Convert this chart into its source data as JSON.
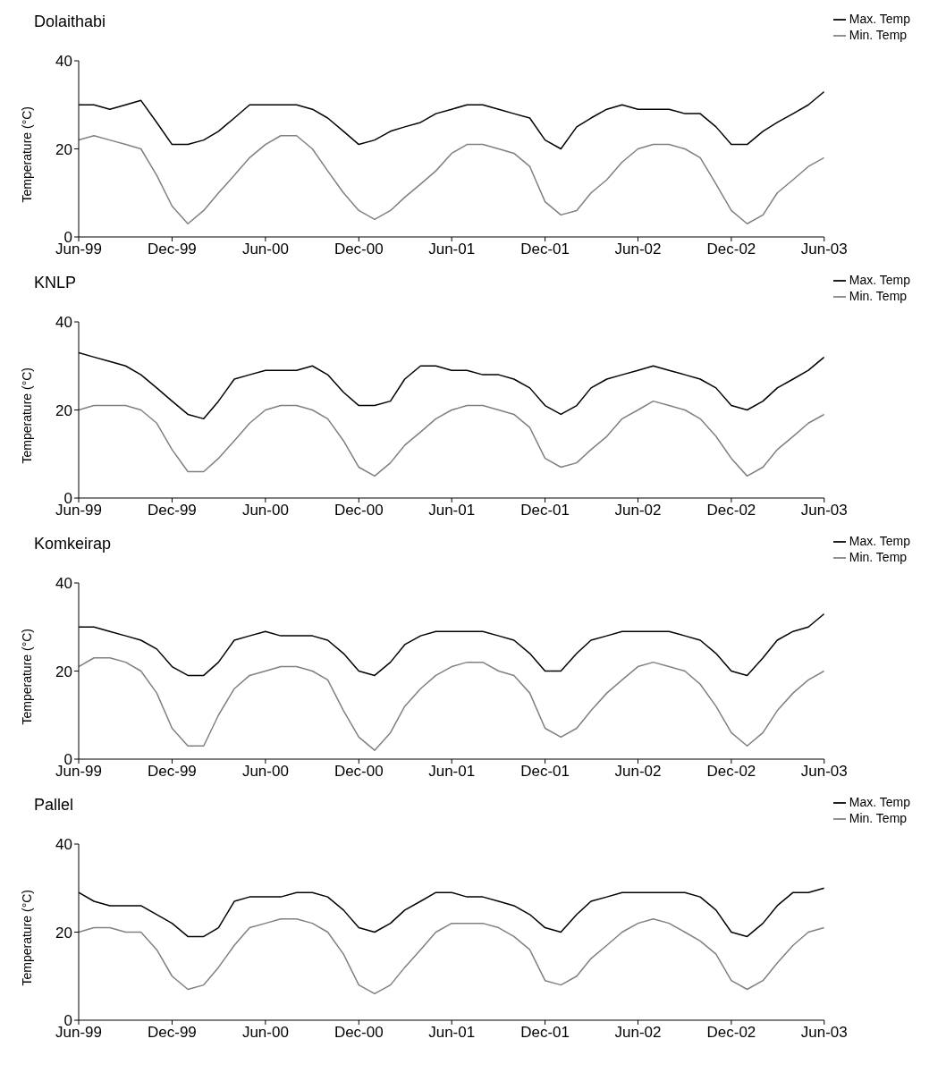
{
  "chart_data": [
    {
      "type": "line",
      "title": "Dolaithabi",
      "ylabel": "Temperature (°C)",
      "legend": "top right",
      "grid": false,
      "marker": "none",
      "line_style": "solid",
      "x": [
        "1999-06",
        "1999-07",
        "1999-08",
        "1999-09",
        "1999-10",
        "1999-11",
        "1999-12",
        "2000-01",
        "2000-02",
        "2000-03",
        "2000-04",
        "2000-05",
        "2000-06",
        "2000-07",
        "2000-08",
        "2000-09",
        "2000-10",
        "2000-11",
        "2000-12",
        "2001-01",
        "2001-02",
        "2001-03",
        "2001-04",
        "2001-05",
        "2001-06",
        "2001-07",
        "2001-08",
        "2001-09",
        "2001-10",
        "2001-11",
        "2001-12",
        "2002-01",
        "2002-02",
        "2002-03",
        "2002-04",
        "2002-05",
        "2002-06",
        "2002-07",
        "2002-08",
        "2002-09",
        "2002-10",
        "2002-11",
        "2002-12",
        "2003-01",
        "2003-02",
        "2003-03",
        "2003-04",
        "2003-05",
        "2003-06"
      ],
      "xlim": [
        "1999-06",
        "2003-06"
      ],
      "xticks": [
        {
          "value": "1999-06",
          "label": "Jun-99"
        },
        {
          "value": "1999-12",
          "label": "Dec-99"
        },
        {
          "value": "2000-06",
          "label": "Jun-00"
        },
        {
          "value": "2000-12",
          "label": "Dec-00"
        },
        {
          "value": "2001-06",
          "label": "Jun-01"
        },
        {
          "value": "2001-12",
          "label": "Dec-01"
        },
        {
          "value": "2002-06",
          "label": "Jun-02"
        },
        {
          "value": "2002-12",
          "label": "Dec-02"
        },
        {
          "value": "2003-06",
          "label": "Jun-03"
        }
      ],
      "ylim": [
        0,
        40
      ],
      "yticks": [
        0,
        20,
        40
      ],
      "series": [
        {
          "name": "Max. Temp",
          "color": "#000000",
          "values": [
            30,
            30,
            29,
            30,
            31,
            26,
            21,
            21,
            22,
            24,
            27,
            30,
            30,
            30,
            30,
            29,
            27,
            24,
            21,
            22,
            24,
            25,
            26,
            28,
            29,
            30,
            30,
            29,
            28,
            27,
            22,
            20,
            25,
            27,
            29,
            30,
            29,
            29,
            29,
            28,
            28,
            25,
            21,
            21,
            24,
            26,
            28,
            30,
            33
          ]
        },
        {
          "name": "Min. Temp",
          "color": "#808080",
          "values": [
            22,
            23,
            22,
            21,
            20,
            14,
            7,
            3,
            6,
            10,
            14,
            18,
            21,
            23,
            23,
            20,
            15,
            10,
            6,
            4,
            6,
            9,
            12,
            15,
            19,
            21,
            21,
            20,
            19,
            16,
            8,
            5,
            6,
            10,
            13,
            17,
            20,
            21,
            21,
            20,
            18,
            12,
            6,
            3,
            5,
            10,
            13,
            16,
            18
          ]
        }
      ]
    },
    {
      "type": "line",
      "title": "KNLP",
      "ylabel": "Temperature (°C)",
      "legend": "top right",
      "grid": false,
      "marker": "none",
      "line_style": "solid",
      "x": [
        "1999-06",
        "1999-07",
        "1999-08",
        "1999-09",
        "1999-10",
        "1999-11",
        "1999-12",
        "2000-01",
        "2000-02",
        "2000-03",
        "2000-04",
        "2000-05",
        "2000-06",
        "2000-07",
        "2000-08",
        "2000-09",
        "2000-10",
        "2000-11",
        "2000-12",
        "2001-01",
        "2001-02",
        "2001-03",
        "2001-04",
        "2001-05",
        "2001-06",
        "2001-07",
        "2001-08",
        "2001-09",
        "2001-10",
        "2001-11",
        "2001-12",
        "2002-01",
        "2002-02",
        "2002-03",
        "2002-04",
        "2002-05",
        "2002-06",
        "2002-07",
        "2002-08",
        "2002-09",
        "2002-10",
        "2002-11",
        "2002-12",
        "2003-01",
        "2003-02",
        "2003-03",
        "2003-04",
        "2003-05",
        "2003-06"
      ],
      "xlim": [
        "1999-06",
        "2003-06"
      ],
      "xticks": [
        {
          "value": "1999-06",
          "label": "Jun-99"
        },
        {
          "value": "1999-12",
          "label": "Dec-99"
        },
        {
          "value": "2000-06",
          "label": "Jun-00"
        },
        {
          "value": "2000-12",
          "label": "Dec-00"
        },
        {
          "value": "2001-06",
          "label": "Jun-01"
        },
        {
          "value": "2001-12",
          "label": "Dec-01"
        },
        {
          "value": "2002-06",
          "label": "Jun-02"
        },
        {
          "value": "2002-12",
          "label": "Dec-02"
        },
        {
          "value": "2003-06",
          "label": "Jun-03"
        }
      ],
      "ylim": [
        0,
        40
      ],
      "yticks": [
        0,
        20,
        40
      ],
      "series": [
        {
          "name": "Max. Temp",
          "color": "#000000",
          "values": [
            33,
            32,
            31,
            30,
            28,
            25,
            22,
            19,
            18,
            22,
            27,
            28,
            29,
            29,
            29,
            30,
            28,
            24,
            21,
            21,
            22,
            27,
            30,
            30,
            29,
            29,
            28,
            28,
            27,
            25,
            21,
            19,
            21,
            25,
            27,
            28,
            29,
            30,
            29,
            28,
            27,
            25,
            21,
            20,
            22,
            25,
            27,
            29,
            32
          ]
        },
        {
          "name": "Min. Temp",
          "color": "#808080",
          "values": [
            20,
            21,
            21,
            21,
            20,
            17,
            11,
            6,
            6,
            9,
            13,
            17,
            20,
            21,
            21,
            20,
            18,
            13,
            7,
            5,
            8,
            12,
            15,
            18,
            20,
            21,
            21,
            20,
            19,
            16,
            9,
            7,
            8,
            11,
            14,
            18,
            20,
            22,
            21,
            20,
            18,
            14,
            9,
            5,
            7,
            11,
            14,
            17,
            19
          ]
        }
      ]
    },
    {
      "type": "line",
      "title": "Komkeirap",
      "ylabel": "Temperature (°C)",
      "legend": "top right",
      "grid": false,
      "marker": "none",
      "line_style": "solid",
      "x": [
        "1999-06",
        "1999-07",
        "1999-08",
        "1999-09",
        "1999-10",
        "1999-11",
        "1999-12",
        "2000-01",
        "2000-02",
        "2000-03",
        "2000-04",
        "2000-05",
        "2000-06",
        "2000-07",
        "2000-08",
        "2000-09",
        "2000-10",
        "2000-11",
        "2000-12",
        "2001-01",
        "2001-02",
        "2001-03",
        "2001-04",
        "2001-05",
        "2001-06",
        "2001-07",
        "2001-08",
        "2001-09",
        "2001-10",
        "2001-11",
        "2001-12",
        "2002-01",
        "2002-02",
        "2002-03",
        "2002-04",
        "2002-05",
        "2002-06",
        "2002-07",
        "2002-08",
        "2002-09",
        "2002-10",
        "2002-11",
        "2002-12",
        "2003-01",
        "2003-02",
        "2003-03",
        "2003-04",
        "2003-05",
        "2003-06"
      ],
      "xlim": [
        "1999-06",
        "2003-06"
      ],
      "xticks": [
        {
          "value": "1999-06",
          "label": "Jun-99"
        },
        {
          "value": "1999-12",
          "label": "Dec-99"
        },
        {
          "value": "2000-06",
          "label": "Jun-00"
        },
        {
          "value": "2000-12",
          "label": "Dec-00"
        },
        {
          "value": "2001-06",
          "label": "Jun-01"
        },
        {
          "value": "2001-12",
          "label": "Dec-01"
        },
        {
          "value": "2002-06",
          "label": "Jun-02"
        },
        {
          "value": "2002-12",
          "label": "Dec-02"
        },
        {
          "value": "2003-06",
          "label": "Jun-03"
        }
      ],
      "ylim": [
        0,
        40
      ],
      "yticks": [
        0,
        20,
        40
      ],
      "series": [
        {
          "name": "Max. Temp",
          "color": "#000000",
          "values": [
            30,
            30,
            29,
            28,
            27,
            25,
            21,
            19,
            19,
            22,
            27,
            28,
            29,
            28,
            28,
            28,
            27,
            24,
            20,
            19,
            22,
            26,
            28,
            29,
            29,
            29,
            29,
            28,
            27,
            24,
            20,
            20,
            24,
            27,
            28,
            29,
            29,
            29,
            29,
            28,
            27,
            24,
            20,
            19,
            23,
            27,
            29,
            30,
            33
          ]
        },
        {
          "name": "Min. Temp",
          "color": "#808080",
          "values": [
            21,
            23,
            23,
            22,
            20,
            15,
            7,
            3,
            3,
            10,
            16,
            19,
            20,
            21,
            21,
            20,
            18,
            11,
            5,
            2,
            6,
            12,
            16,
            19,
            21,
            22,
            22,
            20,
            19,
            15,
            7,
            5,
            7,
            11,
            15,
            18,
            21,
            22,
            21,
            20,
            17,
            12,
            6,
            3,
            6,
            11,
            15,
            18,
            20
          ]
        }
      ]
    },
    {
      "type": "line",
      "title": "Pallel",
      "ylabel": "Temperature (°C)",
      "legend": "top right",
      "grid": false,
      "marker": "none",
      "line_style": "solid",
      "x": [
        "1999-06",
        "1999-07",
        "1999-08",
        "1999-09",
        "1999-10",
        "1999-11",
        "1999-12",
        "2000-01",
        "2000-02",
        "2000-03",
        "2000-04",
        "2000-05",
        "2000-06",
        "2000-07",
        "2000-08",
        "2000-09",
        "2000-10",
        "2000-11",
        "2000-12",
        "2001-01",
        "2001-02",
        "2001-03",
        "2001-04",
        "2001-05",
        "2001-06",
        "2001-07",
        "2001-08",
        "2001-09",
        "2001-10",
        "2001-11",
        "2001-12",
        "2002-01",
        "2002-02",
        "2002-03",
        "2002-04",
        "2002-05",
        "2002-06",
        "2002-07",
        "2002-08",
        "2002-09",
        "2002-10",
        "2002-11",
        "2002-12",
        "2003-01",
        "2003-02",
        "2003-03",
        "2003-04",
        "2003-05",
        "2003-06"
      ],
      "xlim": [
        "1999-06",
        "2003-06"
      ],
      "xticks": [
        {
          "value": "1999-06",
          "label": "Jun-99"
        },
        {
          "value": "1999-12",
          "label": "Dec-99"
        },
        {
          "value": "2000-06",
          "label": "Jun-00"
        },
        {
          "value": "2000-12",
          "label": "Dec-00"
        },
        {
          "value": "2001-06",
          "label": "Jun-01"
        },
        {
          "value": "2001-12",
          "label": "Dec-01"
        },
        {
          "value": "2002-06",
          "label": "Jun-02"
        },
        {
          "value": "2002-12",
          "label": "Dec-02"
        },
        {
          "value": "2003-06",
          "label": "Jun-03"
        }
      ],
      "ylim": [
        0,
        40
      ],
      "yticks": [
        0,
        20,
        40
      ],
      "series": [
        {
          "name": "Max. Temp",
          "color": "#000000",
          "values": [
            29,
            27,
            26,
            26,
            26,
            24,
            22,
            19,
            19,
            21,
            27,
            28,
            28,
            28,
            29,
            29,
            28,
            25,
            21,
            20,
            22,
            25,
            27,
            29,
            29,
            28,
            28,
            27,
            26,
            24,
            21,
            20,
            24,
            27,
            28,
            29,
            29,
            29,
            29,
            29,
            28,
            25,
            20,
            19,
            22,
            26,
            29,
            29,
            30
          ]
        },
        {
          "name": "Min. Temp",
          "color": "#808080",
          "values": [
            20,
            21,
            21,
            20,
            20,
            16,
            10,
            7,
            8,
            12,
            17,
            21,
            22,
            23,
            23,
            22,
            20,
            15,
            8,
            6,
            8,
            12,
            16,
            20,
            22,
            22,
            22,
            21,
            19,
            16,
            9,
            8,
            10,
            14,
            17,
            20,
            22,
            23,
            22,
            20,
            18,
            15,
            9,
            7,
            9,
            13,
            17,
            20,
            21
          ]
        }
      ]
    }
  ]
}
